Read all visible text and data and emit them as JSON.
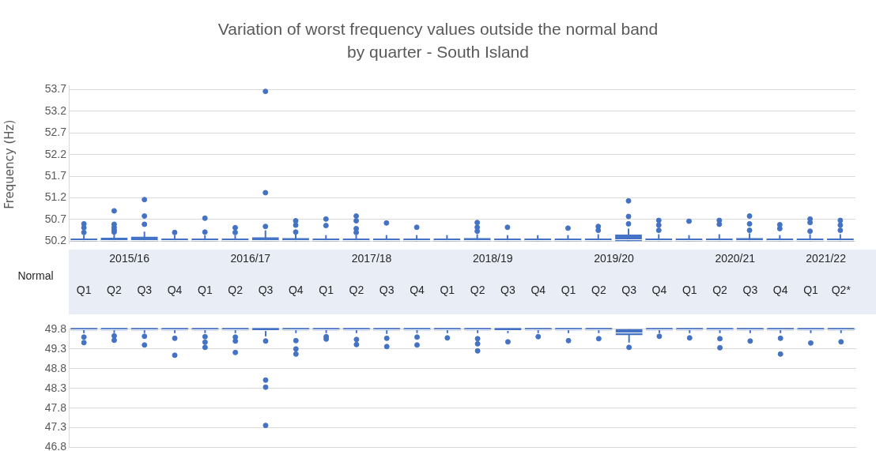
{
  "chart_data": [
    {
      "type": "box",
      "title": "Variation of worst frequency values outside the normal band\nby quarter - South Island",
      "ylabel": "Frequency (Hz)",
      "color": "#4472c4",
      "grid": "y",
      "tick_labels": "y",
      "ylim": [
        50.14,
        53.8
      ],
      "yticks": [
        50.2,
        50.7,
        51.2,
        51.7,
        52.2,
        52.7,
        53.2,
        53.7
      ],
      "boxes": [
        {
          "low": 50.2,
          "q1": 50.2,
          "median": 50.22,
          "q3": 50.26,
          "high": 50.34,
          "outliers": [
            50.6,
            50.51,
            50.4
          ]
        },
        {
          "low": 50.2,
          "q1": 50.2,
          "median": 50.22,
          "q3": 50.28,
          "high": 50.36,
          "outliers": [
            50.9,
            50.59,
            50.52,
            50.46,
            50.41
          ]
        },
        {
          "low": 50.2,
          "q1": 50.2,
          "median": 50.23,
          "q3": 50.3,
          "high": 50.42,
          "outliers": [
            51.16,
            50.78,
            50.59
          ]
        },
        {
          "low": 50.2,
          "q1": 50.2,
          "median": 50.22,
          "q3": 50.26,
          "high": 50.34,
          "outliers": [
            50.4
          ]
        },
        {
          "low": 50.2,
          "q1": 50.2,
          "median": 50.22,
          "q3": 50.26,
          "high": 50.34,
          "outliers": [
            50.73,
            50.41
          ]
        },
        {
          "low": 50.2,
          "q1": 50.2,
          "median": 50.22,
          "q3": 50.26,
          "high": 50.34,
          "outliers": [
            50.51,
            50.4
          ]
        },
        {
          "low": 50.2,
          "q1": 50.2,
          "median": 50.22,
          "q3": 50.29,
          "high": 50.45,
          "outliers": [
            53.66,
            51.32,
            50.54
          ]
        },
        {
          "low": 50.2,
          "q1": 50.2,
          "median": 50.22,
          "q3": 50.27,
          "high": 50.36,
          "outliers": [
            50.67,
            50.57,
            50.41
          ]
        },
        {
          "low": 50.2,
          "q1": 50.2,
          "median": 50.22,
          "q3": 50.26,
          "high": 50.34,
          "outliers": [
            50.71,
            50.56
          ]
        },
        {
          "low": 50.2,
          "q1": 50.2,
          "median": 50.22,
          "q3": 50.26,
          "high": 50.34,
          "outliers": [
            50.78,
            50.67,
            50.49,
            50.4
          ]
        },
        {
          "low": 50.2,
          "q1": 50.2,
          "median": 50.22,
          "q3": 50.26,
          "high": 50.34,
          "outliers": [
            50.62
          ]
        },
        {
          "low": 50.2,
          "q1": 50.2,
          "median": 50.22,
          "q3": 50.26,
          "high": 50.34,
          "outliers": [
            50.52
          ]
        },
        {
          "low": 50.2,
          "q1": 50.2,
          "median": 50.22,
          "q3": 50.26,
          "high": 50.34
        },
        {
          "low": 50.2,
          "q1": 50.2,
          "median": 50.22,
          "q3": 50.27,
          "high": 50.36,
          "outliers": [
            50.63,
            50.52,
            50.43
          ]
        },
        {
          "low": 50.2,
          "q1": 50.2,
          "median": 50.22,
          "q3": 50.26,
          "high": 50.34,
          "outliers": [
            50.52
          ]
        },
        {
          "low": 50.2,
          "q1": 50.2,
          "median": 50.22,
          "q3": 50.26,
          "high": 50.34
        },
        {
          "low": 50.2,
          "q1": 50.2,
          "median": 50.22,
          "q3": 50.26,
          "high": 50.34,
          "outliers": [
            50.5
          ]
        },
        {
          "low": 50.2,
          "q1": 50.2,
          "median": 50.22,
          "q3": 50.26,
          "high": 50.36,
          "outliers": [
            50.54,
            50.45
          ]
        },
        {
          "low": 50.2,
          "q1": 50.2,
          "median": 50.25,
          "q3": 50.35,
          "high": 50.49,
          "outliers": [
            51.13,
            50.77,
            50.6
          ]
        },
        {
          "low": 50.2,
          "q1": 50.2,
          "median": 50.22,
          "q3": 50.26,
          "high": 50.36,
          "outliers": [
            50.68,
            50.57,
            50.45
          ]
        },
        {
          "low": 50.2,
          "q1": 50.2,
          "median": 50.22,
          "q3": 50.26,
          "high": 50.34,
          "outliers": [
            50.66
          ]
        },
        {
          "low": 50.2,
          "q1": 50.2,
          "median": 50.22,
          "q3": 50.26,
          "high": 50.36,
          "outliers": [
            50.68,
            50.59
          ]
        },
        {
          "low": 50.2,
          "q1": 50.2,
          "median": 50.22,
          "q3": 50.27,
          "high": 50.38,
          "outliers": [
            50.78,
            50.6,
            50.45
          ]
        },
        {
          "low": 50.2,
          "q1": 50.2,
          "median": 50.22,
          "q3": 50.26,
          "high": 50.34,
          "outliers": [
            50.58,
            50.49
          ]
        },
        {
          "low": 50.2,
          "q1": 50.2,
          "median": 50.22,
          "q3": 50.26,
          "high": 50.36,
          "outliers": [
            50.71,
            50.63,
            50.43
          ]
        },
        {
          "low": 50.2,
          "q1": 50.2,
          "median": 50.22,
          "q3": 50.26,
          "high": 50.36,
          "outliers": [
            50.68,
            50.57,
            50.45
          ]
        }
      ]
    },
    {
      "type": "box",
      "color": "#4472c4",
      "grid": "y",
      "categories": [
        "Q1",
        "Q2",
        "Q3",
        "Q4",
        "Q1",
        "Q2",
        "Q3",
        "Q4",
        "Q1",
        "Q2",
        "Q3",
        "Q4",
        "Q1",
        "Q2",
        "Q3",
        "Q4",
        "Q1",
        "Q2",
        "Q3",
        "Q4",
        "Q1",
        "Q2",
        "Q3",
        "Q4",
        "Q1",
        "Q2*"
      ],
      "annotations": [
        "Normal",
        "2015/16",
        "2016/17",
        "2017/18",
        "2018/19",
        "2019/20",
        "2020/21",
        "2021/22"
      ],
      "ylim": [
        46.8,
        49.8
      ],
      "yticks": [
        46.8,
        47.3,
        47.8,
        48.3,
        48.8,
        49.3,
        49.8
      ],
      "boxes": [
        {
          "low": 49.7,
          "q1": 49.77,
          "median": 49.79,
          "q3": 49.8,
          "high": 49.8,
          "outliers": [
            49.6,
            49.46
          ]
        },
        {
          "low": 49.7,
          "q1": 49.77,
          "median": 49.79,
          "q3": 49.8,
          "high": 49.8,
          "outliers": [
            49.63,
            49.52
          ]
        },
        {
          "low": 49.7,
          "q1": 49.77,
          "median": 49.79,
          "q3": 49.8,
          "high": 49.8,
          "outliers": [
            49.62,
            49.4
          ]
        },
        {
          "low": 49.7,
          "q1": 49.77,
          "median": 49.79,
          "q3": 49.8,
          "high": 49.8,
          "outliers": [
            49.57,
            49.14
          ]
        },
        {
          "low": 49.7,
          "q1": 49.77,
          "median": 49.79,
          "q3": 49.8,
          "high": 49.8,
          "outliers": [
            49.61,
            49.47,
            49.34
          ]
        },
        {
          "low": 49.7,
          "q1": 49.77,
          "median": 49.79,
          "q3": 49.8,
          "high": 49.8,
          "outliers": [
            49.6,
            49.5,
            49.21
          ]
        },
        {
          "low": 49.62,
          "q1": 49.75,
          "median": 49.78,
          "q3": 49.8,
          "high": 49.8,
          "outliers": [
            49.5,
            48.51,
            48.33,
            47.36
          ]
        },
        {
          "low": 49.7,
          "q1": 49.76,
          "median": 49.79,
          "q3": 49.8,
          "high": 49.8,
          "outliers": [
            49.51,
            49.3,
            49.17
          ]
        },
        {
          "low": 49.7,
          "q1": 49.78,
          "median": 49.79,
          "q3": 49.8,
          "high": 49.8,
          "outliers": [
            49.61,
            49.55
          ]
        },
        {
          "low": 49.7,
          "q1": 49.77,
          "median": 49.79,
          "q3": 49.8,
          "high": 49.8,
          "outliers": [
            49.54,
            49.41
          ]
        },
        {
          "low": 49.68,
          "q1": 49.76,
          "median": 49.79,
          "q3": 49.8,
          "high": 49.8,
          "outliers": [
            49.57,
            49.36
          ]
        },
        {
          "low": 49.7,
          "q1": 49.78,
          "median": 49.79,
          "q3": 49.8,
          "high": 49.8,
          "outliers": [
            49.6,
            49.4
          ]
        },
        {
          "low": 49.7,
          "q1": 49.78,
          "median": 49.79,
          "q3": 49.8,
          "high": 49.8,
          "outliers": [
            49.58
          ]
        },
        {
          "low": 49.7,
          "q1": 49.77,
          "median": 49.79,
          "q3": 49.8,
          "high": 49.8,
          "outliers": [
            49.56,
            49.43,
            49.25
          ]
        },
        {
          "low": 49.7,
          "q1": 49.76,
          "median": 49.78,
          "q3": 49.8,
          "high": 49.8,
          "outliers": [
            49.48
          ]
        },
        {
          "low": 49.7,
          "q1": 49.78,
          "median": 49.79,
          "q3": 49.8,
          "high": 49.8,
          "outliers": [
            49.61
          ]
        },
        {
          "low": 49.7,
          "q1": 49.78,
          "median": 49.79,
          "q3": 49.8,
          "high": 49.8,
          "outliers": [
            49.51
          ]
        },
        {
          "low": 49.7,
          "q1": 49.78,
          "median": 49.79,
          "q3": 49.8,
          "high": 49.8,
          "outliers": [
            49.56
          ]
        },
        {
          "low": 49.46,
          "q1": 49.65,
          "median": 49.72,
          "q3": 49.8,
          "high": 49.8,
          "outliers": [
            49.34
          ]
        },
        {
          "low": 49.7,
          "q1": 49.78,
          "median": 49.79,
          "q3": 49.8,
          "high": 49.8,
          "outliers": [
            49.62
          ]
        },
        {
          "low": 49.7,
          "q1": 49.78,
          "median": 49.79,
          "q3": 49.8,
          "high": 49.8,
          "outliers": [
            49.58
          ]
        },
        {
          "low": 49.7,
          "q1": 49.78,
          "median": 49.79,
          "q3": 49.8,
          "high": 49.8,
          "outliers": [
            49.56,
            49.33
          ]
        },
        {
          "low": 49.7,
          "q1": 49.78,
          "median": 49.79,
          "q3": 49.8,
          "high": 49.8,
          "outliers": [
            49.5
          ]
        },
        {
          "low": 49.7,
          "q1": 49.78,
          "median": 49.79,
          "q3": 49.8,
          "high": 49.8,
          "outliers": [
            49.57,
            49.17
          ]
        },
        {
          "low": 49.7,
          "q1": 49.78,
          "median": 49.79,
          "q3": 49.8,
          "high": 49.8,
          "outliers": [
            49.45
          ]
        },
        {
          "low": 49.7,
          "q1": 49.78,
          "median": 49.79,
          "q3": 49.8,
          "high": 49.8,
          "outliers": [
            49.48
          ]
        }
      ]
    }
  ]
}
